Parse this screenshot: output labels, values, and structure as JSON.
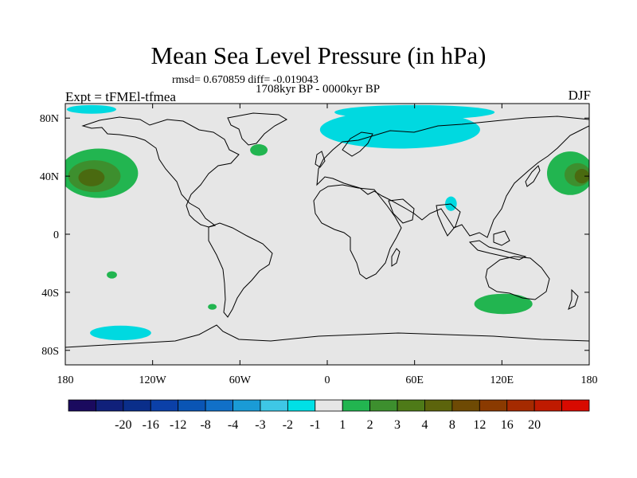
{
  "title": "Mean Sea Level Pressure (in hPa)",
  "stats": "rmsd= 0.670859 diff= -0.019043",
  "period": "1708kyr BP - 0000kyr BP",
  "experiment": "Expt = tFMEl-tfmea",
  "season": "DJF",
  "colors": {
    "background": "#e6e6e6",
    "cyan": "#00d9e0",
    "green1": "#22b550",
    "green2": "#3d8f2e",
    "olive": "#4a6a10"
  },
  "map": {
    "lon_range": [
      -180,
      180
    ],
    "lat_range": [
      -90,
      90
    ],
    "lat_ticks": [
      {
        "value": 80,
        "label": "80N"
      },
      {
        "value": 40,
        "label": "40N"
      },
      {
        "value": 0,
        "label": "0"
      },
      {
        "value": -40,
        "label": "40S"
      },
      {
        "value": -80,
        "label": "80S"
      }
    ],
    "lon_ticks": [
      {
        "value": -180,
        "label": "180"
      },
      {
        "value": -120,
        "label": "120W"
      },
      {
        "value": -60,
        "label": "60W"
      },
      {
        "value": 0,
        "label": "0"
      },
      {
        "value": 60,
        "label": "60E"
      },
      {
        "value": 120,
        "label": "120E"
      },
      {
        "value": 180,
        "label": "180"
      }
    ],
    "anomaly_regions": [
      {
        "name": "north-pacific-high",
        "color": "green1",
        "lon": -157,
        "lat": 42,
        "rlon": 27,
        "rlat": 17
      },
      {
        "name": "north-pacific-high-core",
        "color": "green2",
        "lon": -160,
        "lat": 40,
        "rlon": 18,
        "rlat": 11
      },
      {
        "name": "north-pacific-high-center",
        "color": "olive",
        "lon": -162,
        "lat": 39,
        "rlon": 9,
        "rlat": 6
      },
      {
        "name": "west-pacific-high",
        "color": "green1",
        "lon": 167,
        "lat": 42,
        "rlon": 16,
        "rlat": 15
      },
      {
        "name": "west-pacific-high-core",
        "color": "green2",
        "lon": 172,
        "lat": 41,
        "rlon": 9,
        "rlat": 8
      },
      {
        "name": "west-pacific-high-center",
        "color": "olive",
        "lon": 175,
        "lat": 40,
        "rlon": 5,
        "rlat": 5
      },
      {
        "name": "atlantic-high",
        "color": "green1",
        "lon": -47,
        "lat": 58,
        "rlon": 6,
        "rlat": 4
      },
      {
        "name": "south-pacific-high",
        "color": "green1",
        "lon": -148,
        "lat": -28,
        "rlon": 3.5,
        "rlat": 2.5
      },
      {
        "name": "south-atlantic-high",
        "color": "green1",
        "lon": -79,
        "lat": -50,
        "rlon": 3,
        "rlat": 2
      },
      {
        "name": "southern-indian-high",
        "color": "green1",
        "lon": 121,
        "lat": -48,
        "rlon": 20,
        "rlat": 7
      },
      {
        "name": "arctic-low",
        "color": "cyan",
        "lon": 50,
        "lat": 72,
        "rlon": 55,
        "rlat": 13
      },
      {
        "name": "barents-low",
        "color": "cyan",
        "lon": 60,
        "lat": 84,
        "rlon": 55,
        "rlat": 5
      },
      {
        "name": "beaufort-low",
        "color": "cyan",
        "lon": -162,
        "lat": 86,
        "rlon": 17,
        "rlat": 3
      },
      {
        "name": "himalaya-low",
        "color": "cyan",
        "lon": 85,
        "lat": 21,
        "rlon": 4,
        "rlat": 5
      },
      {
        "name": "antarctic-low",
        "color": "cyan",
        "lon": -142,
        "lat": -68,
        "rlon": 21,
        "rlat": 5
      }
    ]
  },
  "colorbar": {
    "colors": [
      "#1a0a5e",
      "#10207a",
      "#0a2e8a",
      "#0b40a8",
      "#0a55b5",
      "#1170c8",
      "#1a9bd6",
      "#3ec7e6",
      "#00e0e6",
      "#e6e6e6",
      "#22b550",
      "#3d8f2e",
      "#4e7a18",
      "#5c640c",
      "#6e4a04",
      "#8a3a00",
      "#a52a00",
      "#bf1a00",
      "#d80a00"
    ],
    "labels": [
      "-20",
      "-16",
      "-12",
      "-8",
      "-4",
      "-3",
      "-2",
      "-1",
      "1",
      "2",
      "3",
      "4",
      "8",
      "12",
      "16",
      "20"
    ]
  }
}
